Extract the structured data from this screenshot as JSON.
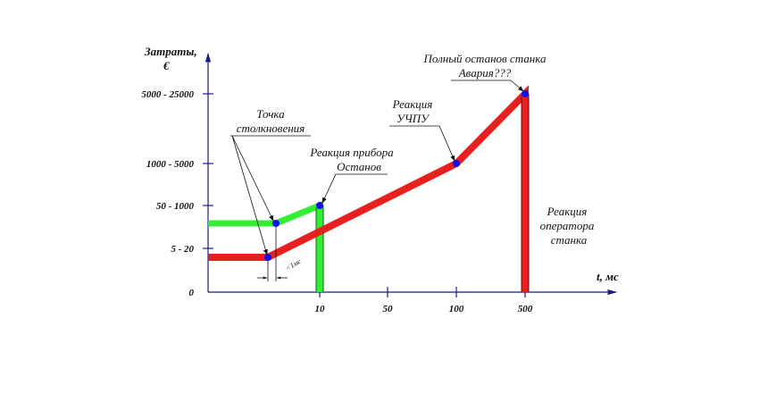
{
  "chart_data": {
    "type": "line",
    "ylabel_line1": "Затраты,",
    "ylabel_line2": "€",
    "xlabel": "t, мс",
    "x_ticks": [
      "10",
      "50",
      "100",
      "500"
    ],
    "y_ticks": [
      "0",
      "5 - 20",
      "50 - 1000",
      "1000 - 5000",
      "5000 - 25000"
    ],
    "series": [
      {
        "color": "#e81f1f",
        "points": [
          [
            "",
            "5 - 20"
          ],
          [
            "",
            "5 - 20"
          ],
          [
            "",
            ""
          ],
          [
            "100",
            "1000 - 5000"
          ],
          [
            "500",
            "5000 - 25000"
          ],
          [
            "500",
            "0"
          ]
        ]
      },
      {
        "color": "#33ee33",
        "points": [
          [
            "",
            ""
          ],
          [
            "",
            ""
          ],
          [
            "10",
            "50 - 1000"
          ],
          [
            "10",
            "0"
          ]
        ]
      }
    ],
    "annotations": {
      "collision_line1": "Точка",
      "collision_line2": "столкновения",
      "device_line1": "Реакция прибора",
      "device_line2": "Останов",
      "cnc_line1": "Реакция",
      "cnc_line2": "УЧПУ",
      "stop_line1": "Полный останов станка",
      "stop_line2": "Авария???",
      "operator_line1": "Реакция",
      "operator_line2": "оператора",
      "operator_line3": "станка",
      "dt_label": "<1мс"
    },
    "colors": {
      "axis": "#1a1a8c",
      "marker": "#1010ee",
      "red": "#e81f1f",
      "green": "#33ee33"
    }
  }
}
